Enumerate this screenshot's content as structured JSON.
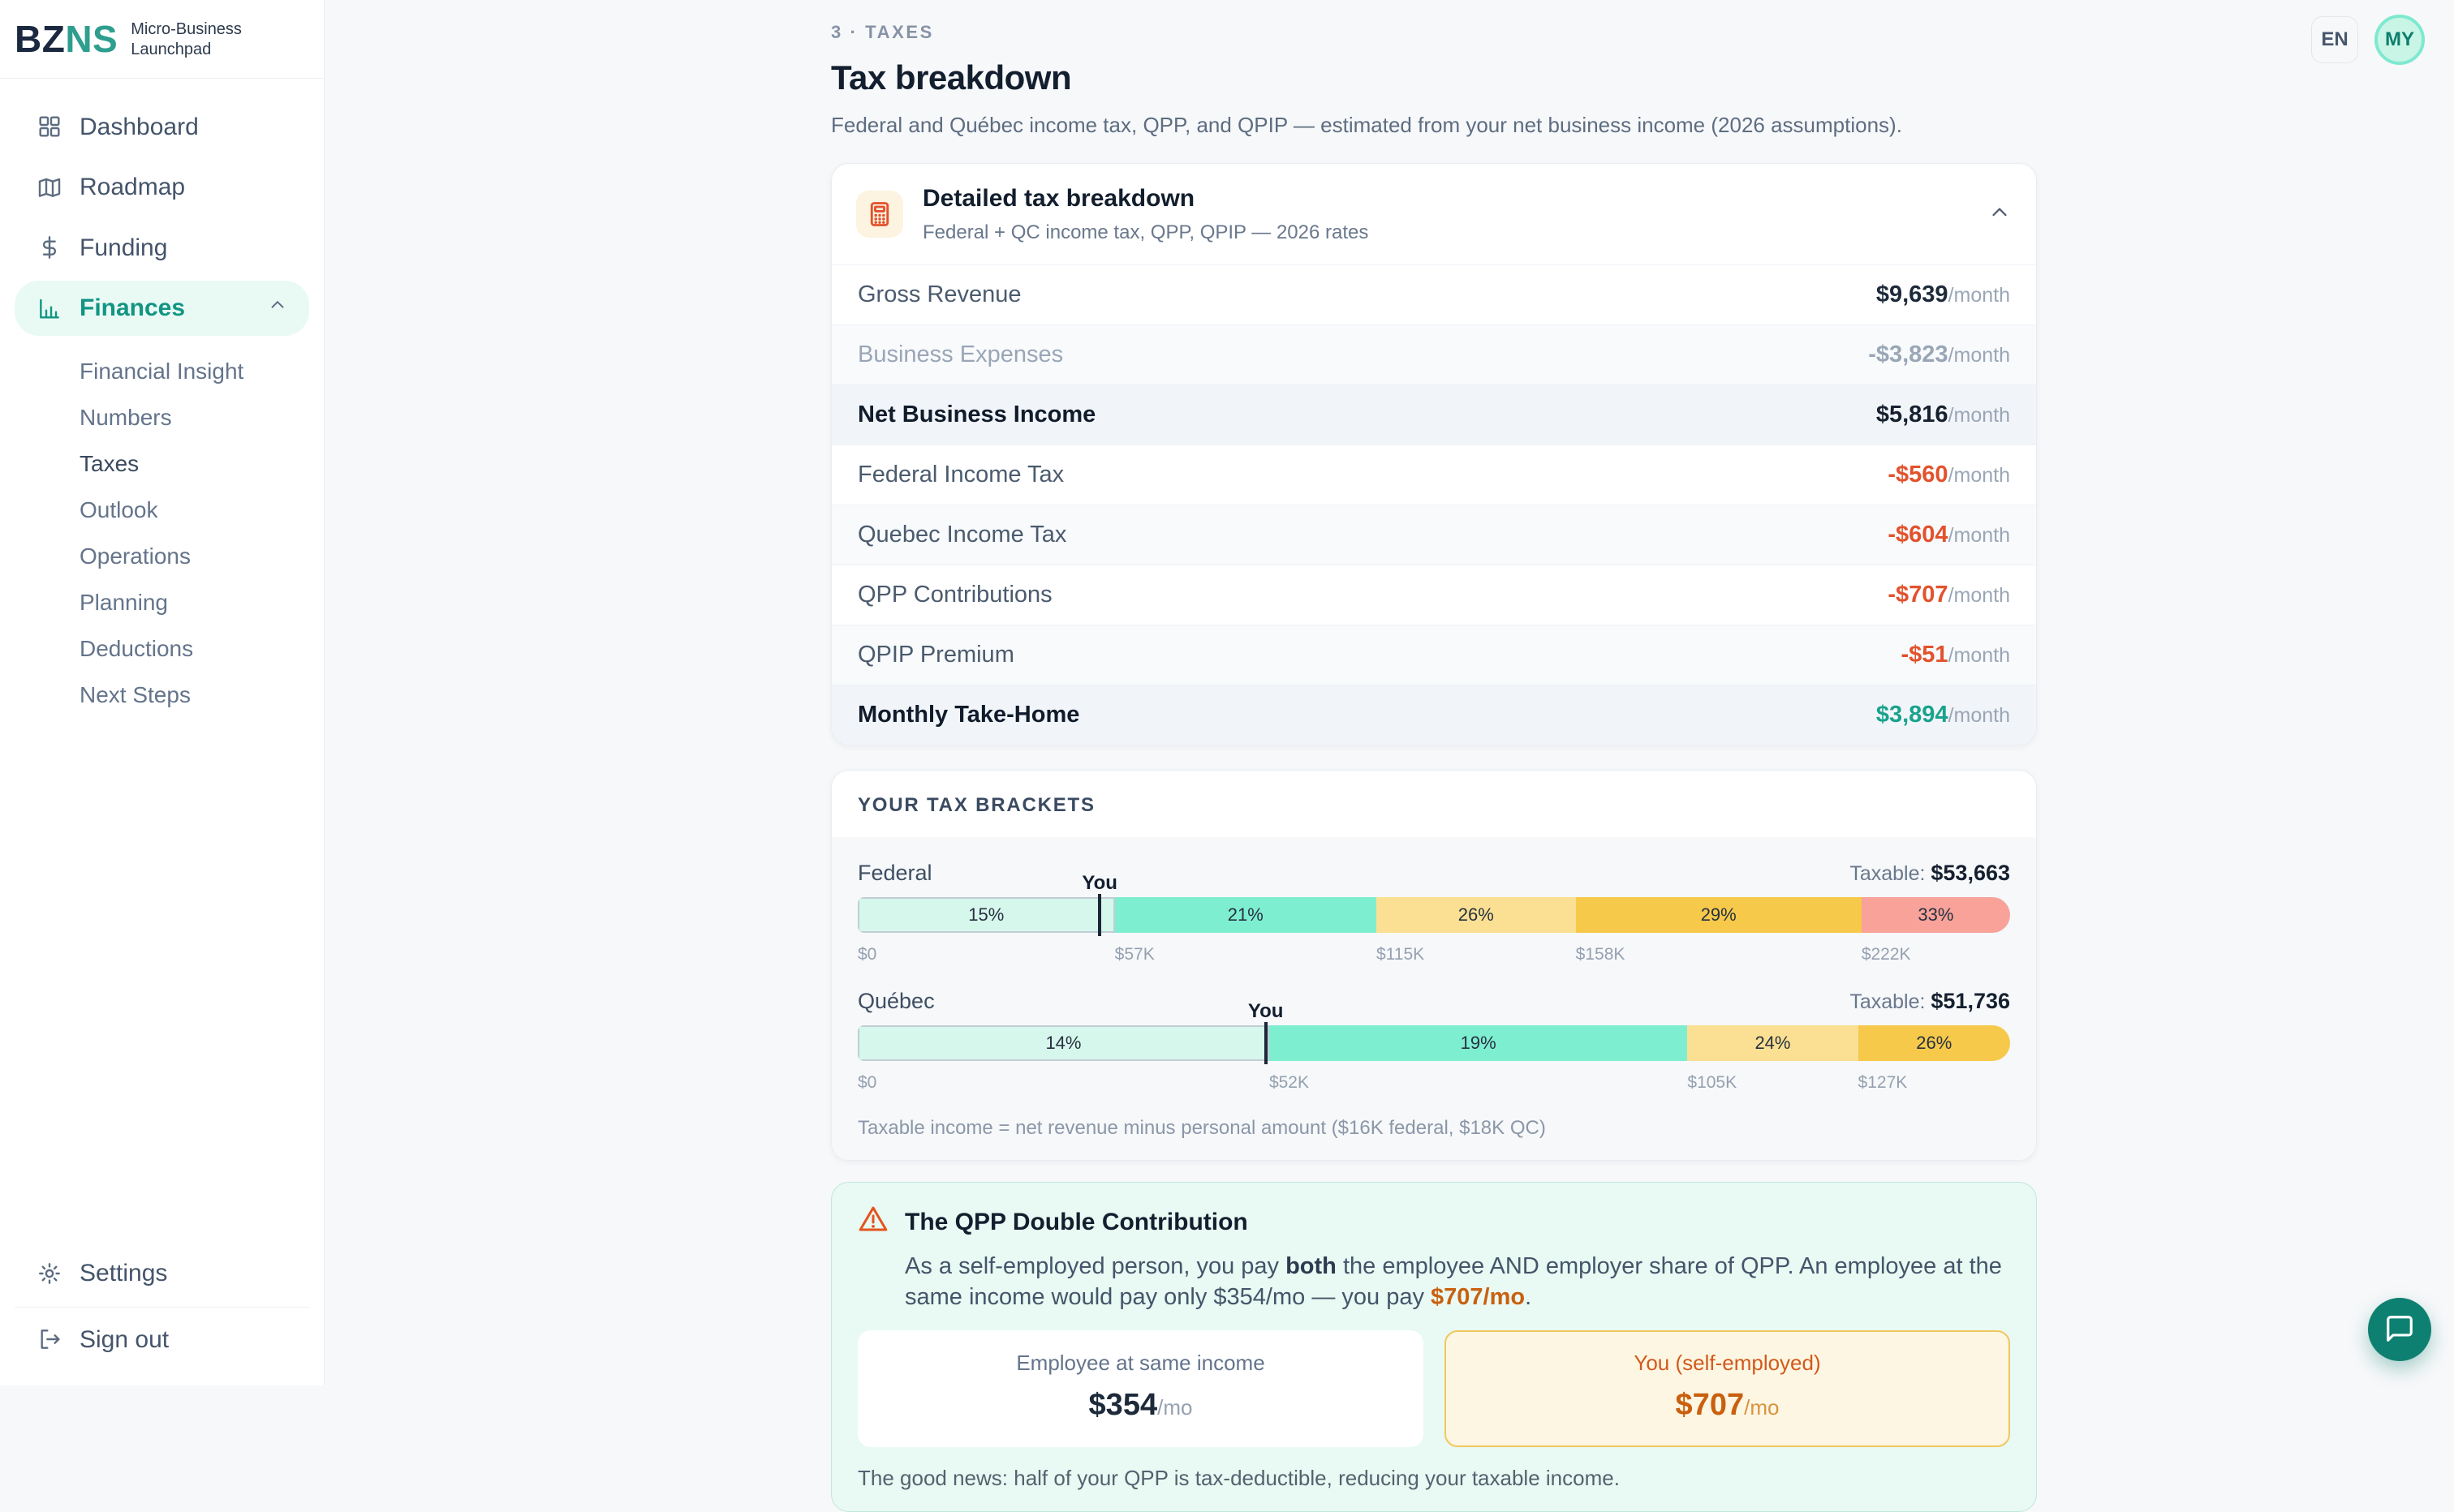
{
  "brand": {
    "bz": "BZ",
    "ns": "NS",
    "tagline": "Micro-Business Launchpad"
  },
  "topbar": {
    "lang": "EN",
    "avatar_initials": "MY"
  },
  "sidebar": {
    "items": [
      {
        "label": "Dashboard",
        "icon": "dashboard-grid-icon"
      },
      {
        "label": "Roadmap",
        "icon": "map-icon"
      },
      {
        "label": "Funding",
        "icon": "dollar-icon"
      },
      {
        "label": "Finances",
        "icon": "bar-chart-icon",
        "active": true,
        "expanded": true
      }
    ],
    "finances_children": [
      {
        "label": "Financial Insight",
        "active": false
      },
      {
        "label": "Numbers",
        "active": false
      },
      {
        "label": "Taxes",
        "active": true
      },
      {
        "label": "Outlook",
        "active": false
      },
      {
        "label": "Operations",
        "active": false
      },
      {
        "label": "Planning",
        "active": false
      },
      {
        "label": "Deductions",
        "active": false
      },
      {
        "label": "Next Steps",
        "active": false
      }
    ],
    "settings_label": "Settings",
    "signout_label": "Sign out"
  },
  "page": {
    "eyebrow": "3 · TAXES",
    "title": "Tax breakdown",
    "subtitle": "Federal and Québec income tax, QPP, and QPIP — estimated from your net business income (2026 assumptions)."
  },
  "breakdown": {
    "icon": "calculator-icon",
    "title": "Detailed tax breakdown",
    "subtitle": "Federal + QC income tax, QPP, QPIP — 2026 rates",
    "suffix": "/month",
    "rows": [
      {
        "label": "Gross Revenue",
        "value": "$9,639",
        "value_color": "#1d2a3a",
        "label_style": "normal",
        "bg": "#ffffff"
      },
      {
        "label": "Business Expenses",
        "value": "-$3,823",
        "value_color": "#9aa6b6",
        "label_style": "muted",
        "bg": "#f8fafc"
      },
      {
        "label": "Net Business Income",
        "value": "$5,816",
        "value_color": "#16202e",
        "label_style": "bold",
        "bg": "#f1f5f9"
      },
      {
        "label": "Federal Income Tax",
        "value": "-$560",
        "value_color": "#e2522c",
        "label_style": "normal",
        "bg": "#ffffff"
      },
      {
        "label": "Quebec Income Tax",
        "value": "-$604",
        "value_color": "#e2522c",
        "label_style": "normal",
        "bg": "#f8fafc"
      },
      {
        "label": "QPP Contributions",
        "value": "-$707",
        "value_color": "#e2522c",
        "label_style": "normal",
        "bg": "#ffffff"
      },
      {
        "label": "QPIP Premium",
        "value": "-$51",
        "value_color": "#e2522c",
        "label_style": "normal",
        "bg": "#f8fafc"
      },
      {
        "label": "Monthly Take-Home",
        "value": "$3,894",
        "value_color": "#19a28d",
        "label_style": "bold",
        "bg": "#f1f5f9"
      }
    ]
  },
  "brackets": {
    "section_title": "YOUR TAX BRACKETS",
    "footnote": "Taxable income = net revenue minus personal amount ($16K federal, $18K QC)",
    "you_label": "You",
    "taxable_label": "Taxable:",
    "bars": [
      {
        "label": "Federal",
        "taxable_value": "$53,663",
        "you_pct": 21.0,
        "segments": [
          {
            "label": "15%",
            "width_pct": 22.3,
            "color": "#d6f7ec",
            "active": true
          },
          {
            "label": "21%",
            "width_pct": 22.7,
            "color": "#7eeed1",
            "active": false
          },
          {
            "label": "26%",
            "width_pct": 17.3,
            "color": "#fbe093",
            "active": false
          },
          {
            "label": "29%",
            "width_pct": 24.8,
            "color": "#f6c94a",
            "active": false
          },
          {
            "label": "33%",
            "width_pct": 12.9,
            "color": "#f8a29a",
            "active": false
          }
        ],
        "ticks": [
          {
            "label": "$0",
            "pos_pct": 0
          },
          {
            "label": "$57K",
            "pos_pct": 22.3
          },
          {
            "label": "$115K",
            "pos_pct": 45.0
          },
          {
            "label": "$158K",
            "pos_pct": 62.3
          },
          {
            "label": "$222K",
            "pos_pct": 87.1
          }
        ]
      },
      {
        "label": "Québec",
        "taxable_value": "$51,736",
        "you_pct": 35.4,
        "segments": [
          {
            "label": "14%",
            "width_pct": 35.7,
            "color": "#d6f7ec",
            "active": true
          },
          {
            "label": "19%",
            "width_pct": 36.3,
            "color": "#7eeed1",
            "active": false
          },
          {
            "label": "24%",
            "width_pct": 14.8,
            "color": "#fbe093",
            "active": false
          },
          {
            "label": "26%",
            "width_pct": 13.2,
            "color": "#f6c94a",
            "active": false
          }
        ],
        "ticks": [
          {
            "label": "$0",
            "pos_pct": 0
          },
          {
            "label": "$52K",
            "pos_pct": 35.7
          },
          {
            "label": "$105K",
            "pos_pct": 72.0
          },
          {
            "label": "$127K",
            "pos_pct": 86.8
          }
        ]
      }
    ]
  },
  "qpp": {
    "title": "The QPP Double Contribution",
    "body": {
      "part1": "As a self-employed person, you pay ",
      "bold": "both",
      "part2": " the employee AND employer share of QPP. An employee at the same income would pay only $354/mo — you pay ",
      "highlight": "$707/mo",
      "part3": "."
    },
    "cards": [
      {
        "label": "Employee at same income",
        "value": "$354",
        "suffix": "/mo",
        "highlighted": false
      },
      {
        "label": "You (self-employed)",
        "value": "$707",
        "suffix": "/mo",
        "highlighted": true
      }
    ],
    "footer": "The good news: half of your QPP is tax-deductible, reducing your taxable income.",
    "colors": {
      "box_bg": "#e9f9f3",
      "box_border": "#bfe8d9",
      "highlight_text": "#c9600f",
      "card_hl_bg": "#fdf6e2",
      "card_hl_border": "#f0c75e",
      "card_hl_label": "#d2591c",
      "card_hl_suffix": "#d9933f"
    }
  },
  "colors": {
    "accent_teal": "#129582",
    "negative": "#e2522c",
    "takehome": "#19a28d",
    "page_bg": "#f7f8fa",
    "mint_pill": "#e9faf5",
    "chat_fab": "#0e8071",
    "you_marker": "#1d2735"
  }
}
